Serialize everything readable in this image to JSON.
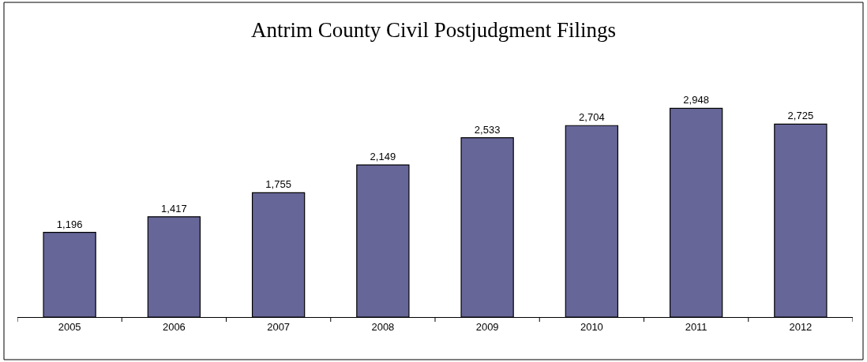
{
  "chart_data": {
    "type": "bar",
    "title": "Antrim County Civil Postjudgment Filings",
    "categories": [
      "2005",
      "2006",
      "2007",
      "2008",
      "2009",
      "2010",
      "2011",
      "2012"
    ],
    "values": [
      1196,
      1417,
      1755,
      2149,
      2533,
      2704,
      2948,
      2725
    ],
    "value_labels": [
      "1,196",
      "1,417",
      "1,755",
      "2,149",
      "2,533",
      "2,704",
      "2,948",
      "2,725"
    ],
    "color": "#666699"
  }
}
